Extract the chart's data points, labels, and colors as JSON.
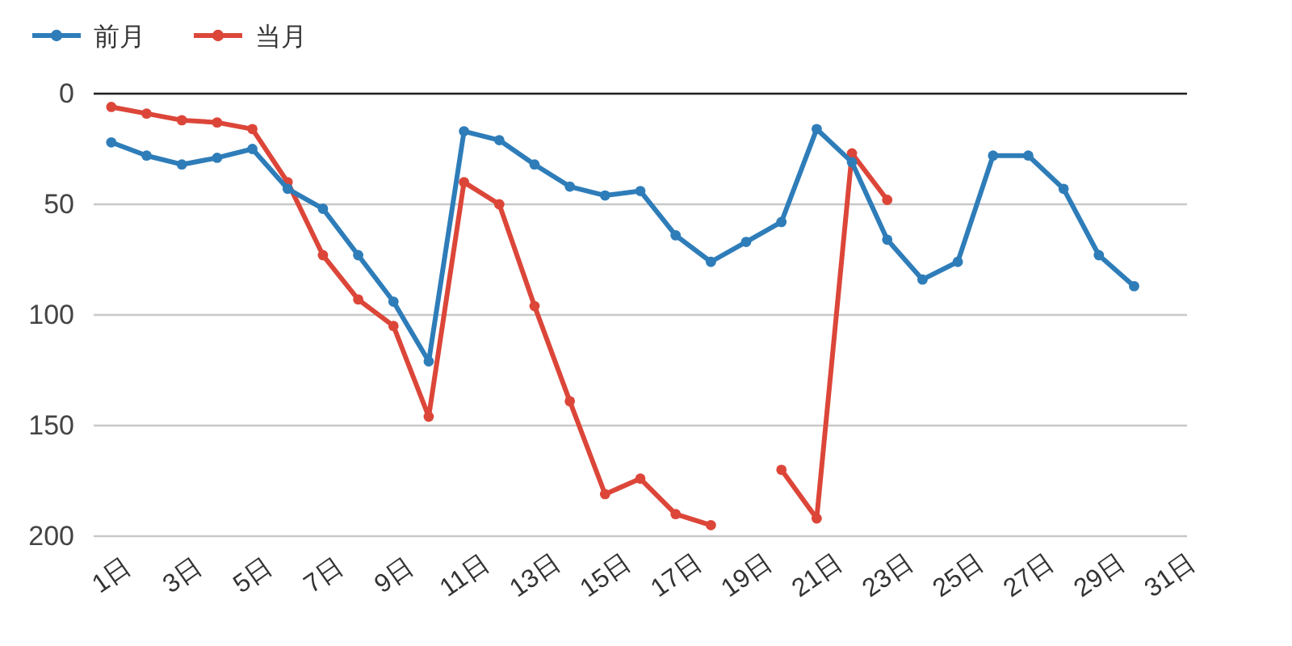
{
  "chart_data": {
    "type": "line",
    "categories": [
      "1日",
      null,
      "3日",
      null,
      "5日",
      null,
      "7日",
      null,
      "9日",
      null,
      "11日",
      null,
      "13日",
      null,
      "15日",
      null,
      "17日",
      null,
      "19日",
      null,
      "21日",
      null,
      "23日",
      null,
      "25日",
      null,
      "27日",
      null,
      "29日",
      null,
      "31日"
    ],
    "series": [
      {
        "name": "前月",
        "color": "#2e7db9",
        "values": [
          22,
          28,
          32,
          29,
          25,
          43,
          52,
          73,
          94,
          121,
          17,
          21,
          32,
          42,
          46,
          44,
          64,
          76,
          67,
          58,
          16,
          31,
          66,
          84,
          76,
          28,
          28,
          43,
          73,
          87,
          null
        ]
      },
      {
        "name": "当月",
        "color": "#dc4639",
        "values": [
          6,
          9,
          12,
          13,
          16,
          40,
          73,
          93,
          105,
          146,
          40,
          50,
          96,
          139,
          181,
          174,
          190,
          195,
          null,
          170,
          192,
          27,
          48,
          null,
          null,
          null,
          null,
          null,
          null,
          null,
          null
        ]
      }
    ],
    "ylim": [
      200,
      0
    ],
    "yticks": [
      0,
      50,
      100,
      150,
      200
    ],
    "grid": "y",
    "legend": "top left",
    "marker": "circle",
    "line_style": "solid"
  }
}
